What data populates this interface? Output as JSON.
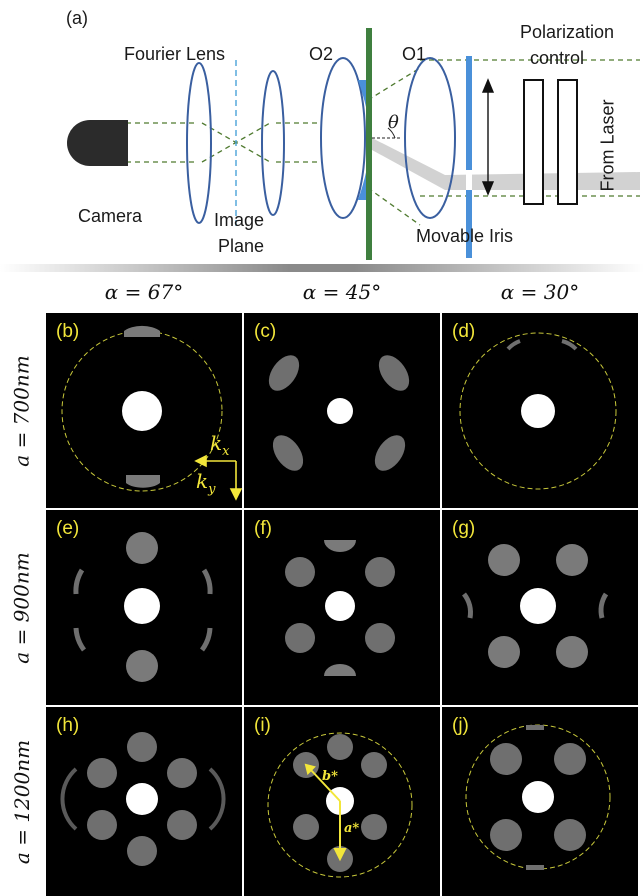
{
  "schematic": {
    "panel_label": "(a)",
    "fourier_lens": "Fourier Lens",
    "o2": "O2",
    "o1": "O1",
    "polarization_line1": "Polarization",
    "polarization_line2": "control",
    "from_laser": "From Laser",
    "theta": "θ",
    "camera": "Camera",
    "image_plane_line1": "Image",
    "image_plane_line2": "Plane",
    "movable_iris": "Movable Iris"
  },
  "columns": [
    "α = 67°",
    "α = 45°",
    "α = 30°"
  ],
  "rows": [
    "a = 700nm",
    "a = 900nm",
    "a = 1200nm"
  ],
  "panels": [
    {
      "label": "(b)",
      "kx": "k",
      "kx_sub": "x",
      "ky": "k",
      "ky_sub": "y"
    },
    {
      "label": "(c)"
    },
    {
      "label": "(d)"
    },
    {
      "label": "(e)"
    },
    {
      "label": "(f)"
    },
    {
      "label": "(g)"
    },
    {
      "label": "(h)"
    },
    {
      "label": "(i)",
      "b_star": "b*",
      "a_star": "a*"
    },
    {
      "label": "(j)"
    }
  ],
  "colors": {
    "annotation": "#f2e63a",
    "lens_stroke": "#3a5fa0",
    "objective_fill": "#4a90d9",
    "sample_plate": "#3f7f3f",
    "beam": "#4f7a2f"
  }
}
